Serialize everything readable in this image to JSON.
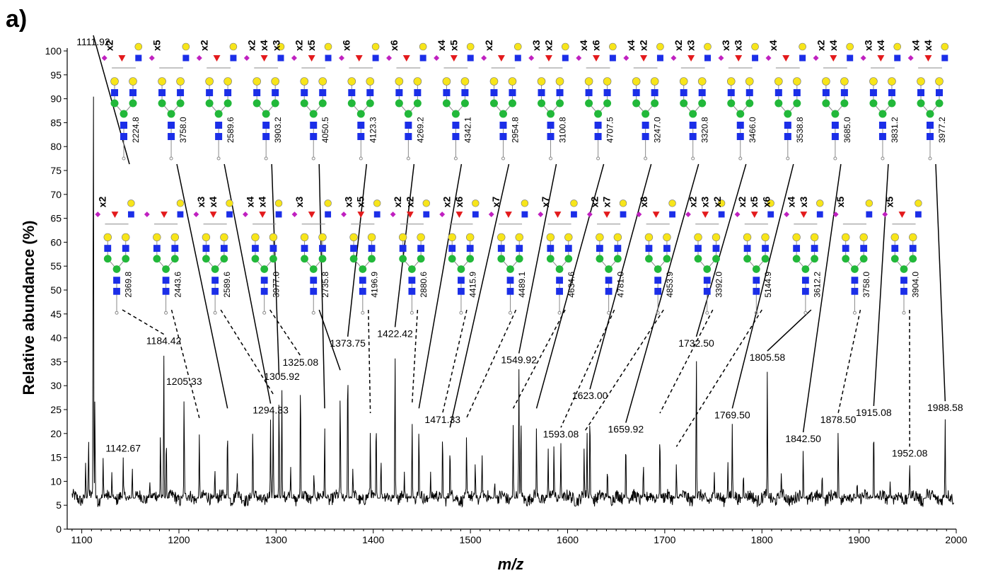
{
  "panel_label": "a)",
  "colors": {
    "galactose": "#f7e51a",
    "glcnac": "#1b2ee8",
    "mannose": "#22b83a",
    "fucose": "#e31a1c",
    "sialic": "#c020c0",
    "trace": "#000000"
  },
  "icons": [
    "galactose-circle-icon",
    "glcnac-square-icon",
    "mannose-circle-icon",
    "fucose-triangle-icon",
    "sialic-diamond-icon"
  ],
  "chart_data": {
    "type": "line",
    "xlabel": "m/z",
    "ylabel": "Relative abundance (%)",
    "xlim": [
      1085,
      2000
    ],
    "ylim": [
      0,
      100
    ],
    "x_ticks": [
      1100,
      1200,
      1300,
      1400,
      1500,
      1600,
      1700,
      1800,
      1900,
      2000
    ],
    "y_ticks": [
      0,
      5,
      10,
      15,
      20,
      25,
      30,
      35,
      40,
      45,
      50,
      55,
      60,
      65,
      70,
      75,
      80,
      85,
      90,
      95,
      100
    ],
    "baseline": 6.5,
    "peaks": [
      {
        "x": 1104,
        "y": 14
      },
      {
        "x": 1107,
        "y": 19
      },
      {
        "x": 1111.92,
        "y": 100
      },
      {
        "x": 1113.5,
        "y": 28
      },
      {
        "x": 1122,
        "y": 15
      },
      {
        "x": 1131,
        "y": 12
      },
      {
        "x": 1142.67,
        "y": 15
      },
      {
        "x": 1152,
        "y": 13
      },
      {
        "x": 1170,
        "y": 10
      },
      {
        "x": 1181,
        "y": 20
      },
      {
        "x": 1184.42,
        "y": 37.5
      },
      {
        "x": 1187,
        "y": 20
      },
      {
        "x": 1205.33,
        "y": 29
      },
      {
        "x": 1221,
        "y": 20
      },
      {
        "x": 1237,
        "y": 13
      },
      {
        "x": 1250,
        "y": 22
      },
      {
        "x": 1260,
        "y": 12
      },
      {
        "x": 1276,
        "y": 22
      },
      {
        "x": 1294.33,
        "y": 23
      },
      {
        "x": 1297,
        "y": 25
      },
      {
        "x": 1303,
        "y": 29
      },
      {
        "x": 1305.92,
        "y": 30
      },
      {
        "x": 1315,
        "y": 13
      },
      {
        "x": 1325.08,
        "y": 33
      },
      {
        "x": 1339,
        "y": 12
      },
      {
        "x": 1350,
        "y": 22
      },
      {
        "x": 1366,
        "y": 30
      },
      {
        "x": 1373.75,
        "y": 37
      },
      {
        "x": 1379,
        "y": 13
      },
      {
        "x": 1397,
        "y": 21
      },
      {
        "x": 1403,
        "y": 24
      },
      {
        "x": 1408,
        "y": 15
      },
      {
        "x": 1422.42,
        "y": 39
      },
      {
        "x": 1432,
        "y": 12
      },
      {
        "x": 1440,
        "y": 23
      },
      {
        "x": 1447,
        "y": 22
      },
      {
        "x": 1459,
        "y": 12
      },
      {
        "x": 1471.33,
        "y": 21
      },
      {
        "x": 1479,
        "y": 18
      },
      {
        "x": 1496,
        "y": 20
      },
      {
        "x": 1505,
        "y": 14
      },
      {
        "x": 1512,
        "y": 16
      },
      {
        "x": 1525,
        "y": 10
      },
      {
        "x": 1544,
        "y": 22
      },
      {
        "x": 1549.92,
        "y": 33.5
      },
      {
        "x": 1552,
        "y": 24
      },
      {
        "x": 1568,
        "y": 22
      },
      {
        "x": 1580,
        "y": 17
      },
      {
        "x": 1586,
        "y": 18
      },
      {
        "x": 1593.08,
        "y": 18
      },
      {
        "x": 1617,
        "y": 17
      },
      {
        "x": 1620,
        "y": 21
      },
      {
        "x": 1623.0,
        "y": 26
      },
      {
        "x": 1641,
        "y": 13
      },
      {
        "x": 1659.92,
        "y": 19
      },
      {
        "x": 1678,
        "y": 14
      },
      {
        "x": 1695,
        "y": 21
      },
      {
        "x": 1712,
        "y": 14
      },
      {
        "x": 1732.5,
        "y": 37
      },
      {
        "x": 1751,
        "y": 12
      },
      {
        "x": 1765,
        "y": 14
      },
      {
        "x": 1769.5,
        "y": 22
      },
      {
        "x": 1781,
        "y": 12
      },
      {
        "x": 1805.58,
        "y": 34
      },
      {
        "x": 1820,
        "y": 12
      },
      {
        "x": 1842.5,
        "y": 17
      },
      {
        "x": 1862,
        "y": 12
      },
      {
        "x": 1878.5,
        "y": 21
      },
      {
        "x": 1898,
        "y": 10
      },
      {
        "x": 1915.08,
        "y": 22.5
      },
      {
        "x": 1932,
        "y": 10
      },
      {
        "x": 1952.08,
        "y": 14
      },
      {
        "x": 1970,
        "y": 9
      },
      {
        "x": 1988.58,
        "y": 23.5
      }
    ],
    "peak_labels": [
      {
        "text": "1111.92",
        "x": 1111.92,
        "y": 100
      },
      {
        "text": "1142.67",
        "x": 1142.67,
        "y": 15
      },
      {
        "text": "1184.42",
        "x": 1184.42,
        "y": 37.5
      },
      {
        "text": "1205.33",
        "x": 1205.33,
        "y": 29
      },
      {
        "text": "1294.33",
        "x": 1294.33,
        "y": 23
      },
      {
        "text": "1305.92",
        "x": 1305.92,
        "y": 30
      },
      {
        "text": "1325.08",
        "x": 1325.08,
        "y": 33
      },
      {
        "text": "1373.75",
        "x": 1373.75,
        "y": 37
      },
      {
        "text": "1422.42",
        "x": 1422.42,
        "y": 39
      },
      {
        "text": "1471.33",
        "x": 1471.33,
        "y": 21
      },
      {
        "text": "1549.92",
        "x": 1549.92,
        "y": 33.5
      },
      {
        "text": "1593.08",
        "x": 1593.08,
        "y": 18
      },
      {
        "text": "1623.00",
        "x": 1623.0,
        "y": 26
      },
      {
        "text": "1659.92",
        "x": 1659.92,
        "y": 19
      },
      {
        "text": "1732.50",
        "x": 1732.5,
        "y": 37
      },
      {
        "text": "1769.50",
        "x": 1769.5,
        "y": 22
      },
      {
        "text": "1805.58",
        "x": 1805.58,
        "y": 34
      },
      {
        "text": "1842.50",
        "x": 1842.5,
        "y": 17
      },
      {
        "text": "1878.50",
        "x": 1878.5,
        "y": 21
      },
      {
        "text": "1915.08",
        "x": 1915.08,
        "y": 22.5
      },
      {
        "text": "1952.08",
        "x": 1952.08,
        "y": 14
      },
      {
        "text": "1988.58",
        "x": 1988.58,
        "y": 23.5
      }
    ],
    "glycans_top": [
      {
        "mass": "2224.8",
        "mults": [
          "x2"
        ],
        "fuc": true,
        "peak_mz": 1111.92,
        "style": "solid"
      },
      {
        "mass": "3758.0",
        "mults": [
          "x5"
        ],
        "fuc": false,
        "peak_mz": 1250,
        "style": "solid"
      },
      {
        "mass": "2589.6",
        "mults": [
          "x2"
        ],
        "fuc": true,
        "peak_mz": 1294.33,
        "style": "solid"
      },
      {
        "mass": "3903.2",
        "mults": [
          "x2",
          "x4",
          "x3"
        ],
        "fuc": true,
        "peak_mz": 1303,
        "style": "solid"
      },
      {
        "mass": "4050.5",
        "mults": [
          "x2",
          "x5"
        ],
        "fuc": true,
        "peak_mz": 1350,
        "style": "solid"
      },
      {
        "mass": "4123.3",
        "mults": [
          "x6"
        ],
        "fuc": true,
        "peak_mz": 1373.75,
        "style": "solid"
      },
      {
        "mass": "4269.2",
        "mults": [
          "x6"
        ],
        "fuc": true,
        "peak_mz": 1422.42,
        "style": "solid"
      },
      {
        "mass": "4342.1",
        "mults": [
          "x4",
          "x5"
        ],
        "fuc": true,
        "peak_mz": 1447,
        "style": "solid"
      },
      {
        "mass": "2954.8",
        "mults": [
          "x2"
        ],
        "fuc": true,
        "peak_mz": 1479,
        "style": "solid"
      },
      {
        "mass": "3100.8",
        "mults": [
          "x3",
          "x2"
        ],
        "fuc": true,
        "peak_mz": 1549.92,
        "style": "solid"
      },
      {
        "mass": "4707.5",
        "mults": [
          "x4",
          "x6"
        ],
        "fuc": true,
        "peak_mz": 1568,
        "style": "solid"
      },
      {
        "mass": "3247.0",
        "mults": [
          "x4",
          "x2"
        ],
        "fuc": true,
        "peak_mz": 1623.0,
        "style": "solid"
      },
      {
        "mass": "3320.8",
        "mults": [
          "x2",
          "x3"
        ],
        "fuc": true,
        "peak_mz": 1659.92,
        "style": "solid"
      },
      {
        "mass": "3466.0",
        "mults": [
          "x3",
          "x3"
        ],
        "fuc": true,
        "peak_mz": 1732.5,
        "style": "solid"
      },
      {
        "mass": "3538.8",
        "mults": [
          "x4"
        ],
        "fuc": true,
        "peak_mz": 1769.5,
        "style": "solid"
      },
      {
        "mass": "3685.0",
        "mults": [
          "x2",
          "x4"
        ],
        "fuc": true,
        "peak_mz": 1842.5,
        "style": "solid"
      },
      {
        "mass": "3831.2",
        "mults": [
          "x3",
          "x4"
        ],
        "fuc": true,
        "peak_mz": 1915.08,
        "style": "solid"
      },
      {
        "mass": "3977.2",
        "mults": [
          "x4",
          "x4"
        ],
        "fuc": true,
        "peak_mz": 1988.58,
        "style": "solid"
      }
    ],
    "glycans_bottom": [
      {
        "mass": "2369.8",
        "mults": [
          "x2"
        ],
        "fuc": true,
        "peak_mz": 1184.42,
        "style": "dashed"
      },
      {
        "mass": "2443.6",
        "mults": [],
        "fuc": true,
        "peak_mz": 1221,
        "style": "dashed"
      },
      {
        "mass": "2589.6",
        "mults": [
          "x3",
          "x4"
        ],
        "fuc": true,
        "peak_mz": 1297,
        "style": "dashed"
      },
      {
        "mass": "3977.0",
        "mults": [
          "x4",
          "x4"
        ],
        "fuc": true,
        "peak_mz": 1325.08,
        "style": "dashed"
      },
      {
        "mass": "2735.8",
        "mults": [
          "x3"
        ],
        "fuc": true,
        "peak_mz": 1366,
        "style": "solid"
      },
      {
        "mass": "4196.9",
        "mults": [
          "x3",
          "x5"
        ],
        "fuc": true,
        "peak_mz": 1397,
        "style": "dashed"
      },
      {
        "mass": "2880.6",
        "mults": [
          "x2",
          "x2"
        ],
        "fuc": true,
        "peak_mz": 1440,
        "style": "dashed"
      },
      {
        "mass": "4415.9",
        "mults": [
          "x2",
          "x6"
        ],
        "fuc": true,
        "peak_mz": 1471.33,
        "style": "dashed"
      },
      {
        "mass": "4489.1",
        "mults": [
          "x7"
        ],
        "fuc": true,
        "peak_mz": 1496,
        "style": "dashed"
      },
      {
        "mass": "4634.6",
        "mults": [
          "x7"
        ],
        "fuc": true,
        "peak_mz": 1544,
        "style": "dashed"
      },
      {
        "mass": "4781.0",
        "mults": [
          "x2",
          "x7"
        ],
        "fuc": true,
        "peak_mz": 1593.08,
        "style": "dashed"
      },
      {
        "mass": "4853.9",
        "mults": [
          "x8"
        ],
        "fuc": true,
        "peak_mz": 1617,
        "style": "dashed"
      },
      {
        "mass": "3392.0",
        "mults": [
          "x2",
          "x3",
          "x2"
        ],
        "fuc": true,
        "peak_mz": 1695,
        "style": "dashed"
      },
      {
        "mass": "5144.9",
        "mults": [
          "x2",
          "x5",
          "x6"
        ],
        "fuc": true,
        "peak_mz": 1712,
        "style": "dashed"
      },
      {
        "mass": "3612.2",
        "mults": [
          "x4",
          "x3"
        ],
        "fuc": true,
        "peak_mz": 1805.58,
        "style": "solid"
      },
      {
        "mass": "3758.0",
        "mults": [
          "x5"
        ],
        "fuc": false,
        "peak_mz": 1878.5,
        "style": "dashed"
      },
      {
        "mass": "3904.0",
        "mults": [
          "x5"
        ],
        "fuc": true,
        "peak_mz": 1952.08,
        "style": "dashed"
      }
    ]
  }
}
